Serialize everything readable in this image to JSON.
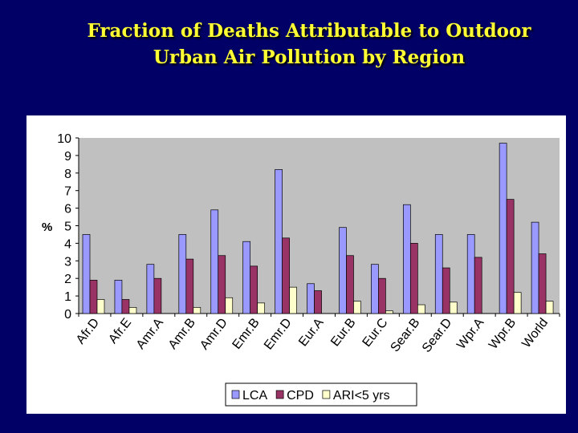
{
  "slide": {
    "title_line1": "Fraction of Deaths Attributable to Outdoor",
    "title_line2": "Urban Air Pollution  by Region"
  },
  "chart_data": {
    "type": "bar",
    "title": "",
    "xlabel": "",
    "ylabel": "%",
    "ylim": [
      0,
      10
    ],
    "yticks": [
      0,
      1,
      2,
      3,
      4,
      5,
      6,
      7,
      8,
      9,
      10
    ],
    "grid": false,
    "legend_position": "bottom",
    "categories": [
      "Afr.D",
      "Afr.E",
      "Amr.A",
      "Amr.B",
      "Amr.D",
      "Emr.B",
      "Emr.D",
      "Eur.A",
      "Eur.B",
      "Eur.C",
      "Sear.B",
      "Sear.D",
      "Wpr.A",
      "Wpr.B",
      "World"
    ],
    "series": [
      {
        "name": "LCA",
        "color": "#9999ff",
        "values": [
          4.5,
          1.9,
          2.8,
          4.5,
          5.9,
          4.1,
          8.2,
          1.7,
          4.9,
          2.8,
          6.2,
          4.5,
          4.5,
          9.7,
          5.2
        ]
      },
      {
        "name": "CPD",
        "color": "#993366",
        "values": [
          1.9,
          0.8,
          2.0,
          3.1,
          3.3,
          2.7,
          4.3,
          1.3,
          3.3,
          2.0,
          4.0,
          2.6,
          3.2,
          6.5,
          3.4
        ]
      },
      {
        "name": "ARI<5 yrs",
        "color": "#ffffcc",
        "values": [
          0.8,
          0.35,
          0,
          0.35,
          0.9,
          0.6,
          1.5,
          0,
          0.7,
          0.15,
          0.5,
          0.65,
          0,
          1.2,
          0.7
        ]
      }
    ]
  }
}
